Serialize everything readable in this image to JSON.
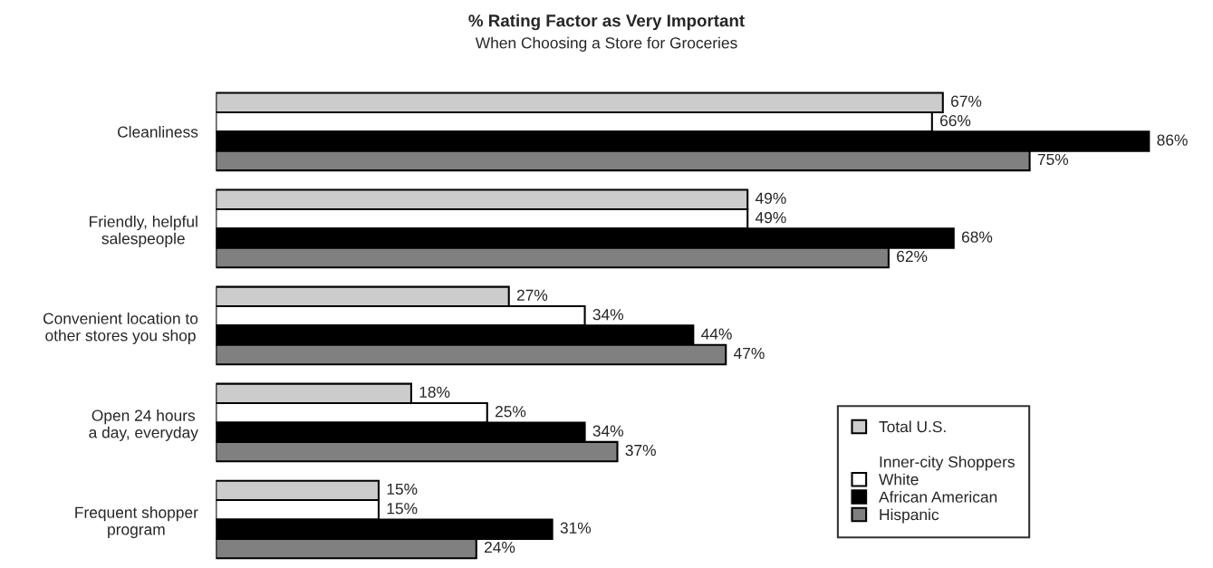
{
  "chart_data": {
    "type": "bar",
    "orientation": "horizontal",
    "title": "% Rating Factor as Very Important",
    "subtitle": "When Choosing a Store for Groceries",
    "categories": [
      "Cleanliness",
      "Friendly, helpful\nsalespeople",
      "Convenient location to\nother stores you shop",
      "Open 24 hours\na day, everyday",
      "Frequent shopper\nprogram"
    ],
    "series": [
      {
        "name": "Total U.S.",
        "color": "#cccccc",
        "values": [
          67,
          49,
          27,
          18,
          15
        ],
        "value_labels": [
          "67%",
          "49%",
          "27%",
          "18%",
          "15%"
        ]
      },
      {
        "name": "White",
        "color": "#ffffff",
        "values": [
          66,
          49,
          34,
          25,
          15
        ],
        "value_labels": [
          "66%",
          "49%",
          "34%",
          "25%",
          "15%"
        ]
      },
      {
        "name": "African American",
        "color": "#000000",
        "values": [
          86,
          68,
          44,
          34,
          31
        ],
        "value_labels": [
          "86%",
          "68%",
          "44%",
          "34%",
          "31%"
        ]
      },
      {
        "name": "Hispanic",
        "color": "#808080",
        "values": [
          75,
          62,
          47,
          37,
          24
        ],
        "value_labels": [
          "75%",
          "62%",
          "47%",
          "37%",
          "24%"
        ]
      }
    ],
    "legend_title": "Inner-city Shoppers",
    "legend": "bottom right",
    "grid": false
  }
}
